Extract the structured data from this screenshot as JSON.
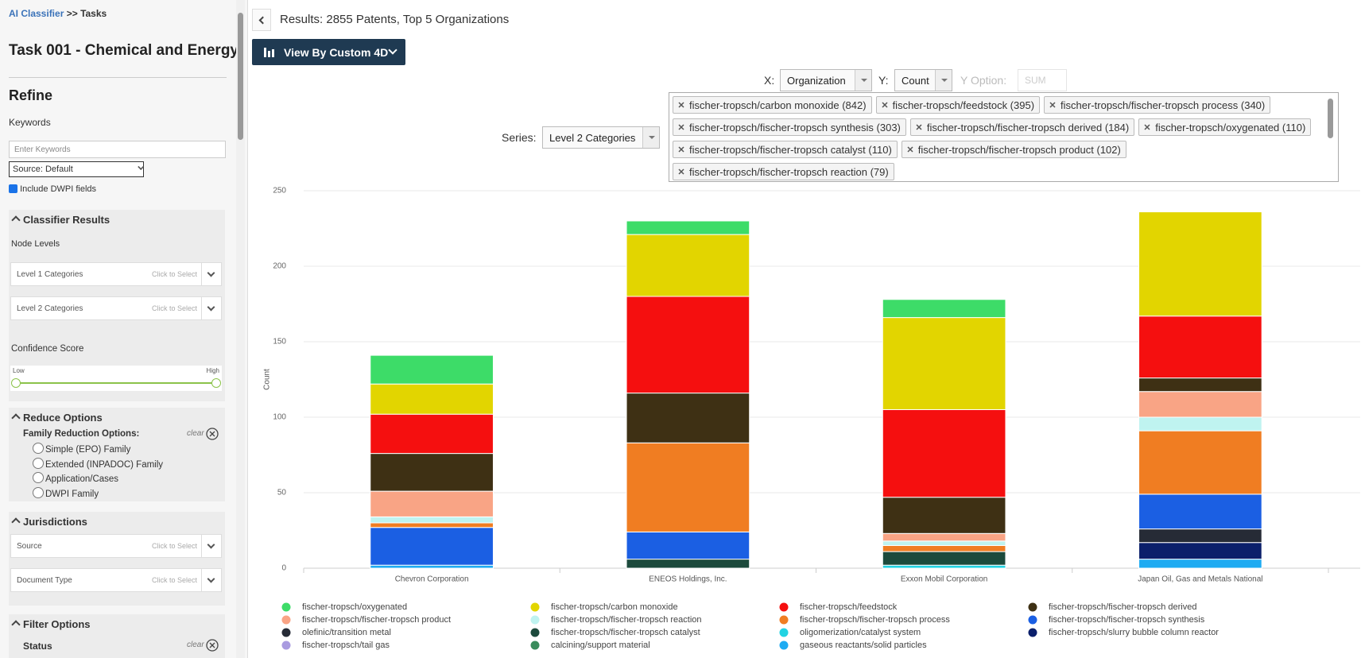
{
  "sidebar": {
    "breadcrumb_link": "AI Classifier",
    "breadcrumb_rest": ">> Tasks",
    "task_title": "Task 001 - Chemical and Energy",
    "refine": "Refine",
    "keywords_label": "Keywords",
    "keywords_placeholder": "Enter Keywords",
    "source_select": "Source: Default",
    "include_dwpi": "Include DWPI fields",
    "classifier_results": {
      "title": "Classifier Results",
      "node_levels": "Node Levels",
      "fields": [
        {
          "label": "Level 1 Categories",
          "hint": "Click to Select"
        },
        {
          "label": "Level 2 Categories",
          "hint": "Click to Select"
        }
      ],
      "confidence": "Confidence Score",
      "low": "Low",
      "high": "High"
    },
    "reduce_options": {
      "title": "Reduce Options",
      "family_label": "Family Reduction Options:",
      "clear": "clear",
      "options": [
        "Simple (EPO) Family",
        "Extended (INPADOC) Family",
        "Application/Cases",
        "DWPI Family"
      ]
    },
    "jurisdictions": {
      "title": "Jurisdictions",
      "fields": [
        {
          "label": "Source",
          "hint": "Click to Select"
        },
        {
          "label": "Document Type",
          "hint": "Click to Select"
        }
      ]
    },
    "filter_options": {
      "title": "Filter Options",
      "status": "Status",
      "clear": "clear"
    }
  },
  "toolbar": {
    "results": "Results: 2855 Patents, Top 5 Organizations",
    "view_button": "View By Custom 4D",
    "x_label": "X:",
    "x_value": "Organization",
    "y_label": "Y:",
    "y_value": "Count",
    "y_option_label": "Y Option:",
    "y_option_value": "SUM",
    "series_label": "Series:",
    "series_value": "Level 2 Categories",
    "tags": [
      "fischer-tropsch/carbon monoxide (842)",
      "fischer-tropsch/feedstock (395)",
      "fischer-tropsch/fischer-tropsch process (340)",
      "fischer-tropsch/fischer-tropsch synthesis (303)",
      "fischer-tropsch/fischer-tropsch derived (184)",
      "fischer-tropsch/oxygenated (110)",
      "fischer-tropsch/fischer-tropsch catalyst (110)",
      "fischer-tropsch/fischer-tropsch product (102)",
      "fischer-tropsch/fischer-tropsch reaction (79)"
    ]
  },
  "chart_data": {
    "type": "stacked_bar",
    "y_label": "Count",
    "categories": [
      "Chevron Corporation",
      "ENEOS Holdings, Inc.",
      "Exxon Mobil Corporation",
      "Japan Oil, Gas and Metals National"
    ],
    "ylim": [
      0,
      250
    ],
    "yticks": [
      0,
      50,
      100,
      150,
      200,
      250
    ],
    "grid": true,
    "series": [
      {
        "name": "fischer-tropsch/oxygenated",
        "color": "#3ddc68",
        "values": [
          19,
          9,
          12,
          0
        ]
      },
      {
        "name": "fischer-tropsch/carbon monoxide",
        "color": "#e2d500",
        "values": [
          20,
          41,
          61,
          69
        ]
      },
      {
        "name": "fischer-tropsch/feedstock",
        "color": "#f50f0f",
        "values": [
          26,
          64,
          58,
          41
        ]
      },
      {
        "name": "fischer-tropsch/fischer-tropsch derived",
        "color": "#3e3014",
        "values": [
          25,
          33,
          24,
          9
        ]
      },
      {
        "name": "fischer-tropsch/fischer-tropsch product",
        "color": "#f9a485",
        "values": [
          17,
          0,
          5,
          17
        ]
      },
      {
        "name": "fischer-tropsch/fischer-tropsch reaction",
        "color": "#bff3f0",
        "values": [
          4,
          0,
          3,
          9
        ]
      },
      {
        "name": "fischer-tropsch/fischer-tropsch process",
        "color": "#f07d22",
        "values": [
          3,
          59,
          4,
          42
        ]
      },
      {
        "name": "fischer-tropsch/fischer-tropsch synthesis",
        "color": "#1b5fe3",
        "values": [
          25,
          18,
          0,
          23
        ]
      },
      {
        "name": "olefinic/transition metal",
        "color": "#262b36",
        "values": [
          0,
          0,
          0,
          9
        ]
      },
      {
        "name": "fischer-tropsch/fischer-tropsch catalyst",
        "color": "#1c4a3c",
        "values": [
          0,
          6,
          9,
          0
        ]
      },
      {
        "name": "oligomerization/catalyst system",
        "color": "#22d3e2",
        "values": [
          0,
          0,
          2,
          0
        ]
      },
      {
        "name": "fischer-tropsch/slurry bubble column reactor",
        "color": "#0b1f6b",
        "values": [
          0,
          0,
          0,
          11
        ]
      },
      {
        "name": "fischer-tropsch/tail gas",
        "color": "#a99be0",
        "values": [
          0,
          0,
          0,
          0
        ]
      },
      {
        "name": "calcining/support material",
        "color": "#3a8c5c",
        "values": [
          0,
          0,
          0,
          0
        ]
      },
      {
        "name": "gaseous reactants/solid particles",
        "color": "#1eabf2",
        "values": [
          2,
          0,
          0,
          6
        ]
      }
    ]
  }
}
